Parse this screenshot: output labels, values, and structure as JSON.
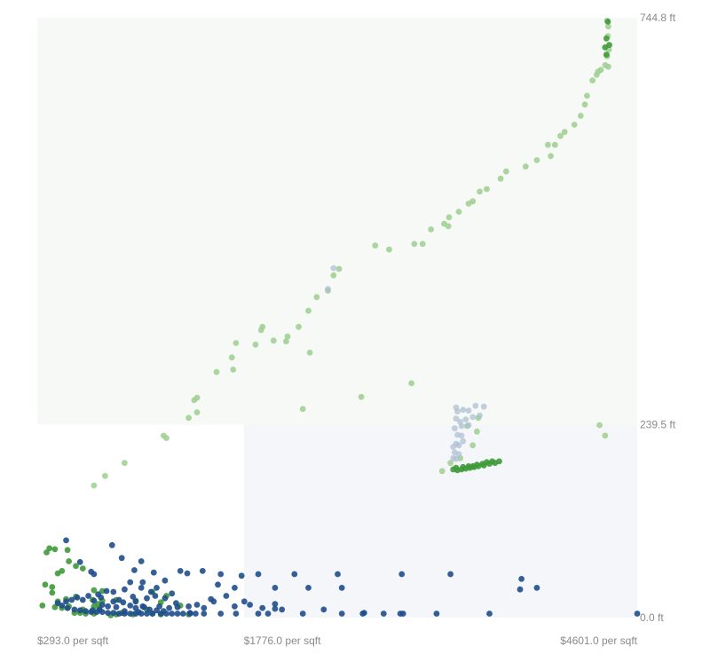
{
  "chart_data": {
    "type": "scatter",
    "title": "",
    "xlabel": "",
    "ylabel": "",
    "xlim": [
      293.0,
      4601.0
    ],
    "ylim": [
      0.0,
      744.8
    ],
    "x_ticks": [
      {
        "value": 293.0,
        "label": "$293.0 per sqft"
      },
      {
        "value": 1776.0,
        "label": "$1776.0 per sqft"
      },
      {
        "value": 4601.0,
        "label": "$4601.0 per sqft"
      }
    ],
    "y_ticks": [
      {
        "value": 744.8,
        "label": "744.8 ft"
      },
      {
        "value": 239.5,
        "label": "239.5 ft"
      },
      {
        "value": 0.0,
        "label": "0.0 ft"
      }
    ],
    "regions": [
      {
        "x": [
          293.0,
          4601.0
        ],
        "y": [
          239.5,
          744.8
        ],
        "fill": "#f7f9f6"
      },
      {
        "x": [
          1776.0,
          4601.0
        ],
        "y": [
          0.0,
          239.5
        ],
        "fill": "#f5f6f9"
      }
    ],
    "colors": {
      "blue": "#1f4e8c",
      "green": "#3f9a38",
      "light_green": "#9ccf8f",
      "light_blue": "#a9bdd3"
    },
    "series": [
      {
        "color": "#9ccf8f",
        "opacity": 0.85,
        "points": [
          [
            4385,
            741
          ],
          [
            4393,
            734
          ],
          [
            4390,
            722
          ],
          [
            4397,
            705
          ],
          [
            4385,
            697
          ],
          [
            4393,
            684
          ],
          [
            4371,
            686
          ],
          [
            4340,
            680
          ],
          [
            4320,
            678
          ],
          [
            4310,
            674
          ],
          [
            4280,
            667
          ],
          [
            4240,
            648
          ],
          [
            4225,
            637
          ],
          [
            4195,
            623
          ],
          [
            4150,
            612
          ],
          [
            4080,
            603
          ],
          [
            4050,
            598
          ],
          [
            4010,
            587
          ],
          [
            3960,
            587
          ],
          [
            3980,
            573
          ],
          [
            3880,
            568
          ],
          [
            3800,
            560
          ],
          [
            3660,
            554
          ],
          [
            3620,
            545
          ],
          [
            3520,
            532
          ],
          [
            3470,
            529
          ],
          [
            3420,
            517
          ],
          [
            3390,
            514
          ],
          [
            3320,
            504
          ],
          [
            3250,
            497
          ],
          [
            3245,
            486
          ],
          [
            3215,
            489
          ],
          [
            3120,
            482
          ],
          [
            3060,
            464
          ],
          [
            3000,
            464
          ],
          [
            2820,
            457
          ],
          [
            2720,
            462
          ],
          [
            2460,
            433
          ],
          [
            2420,
            425
          ],
          [
            2380,
            406
          ],
          [
            2300,
            398
          ],
          [
            2240,
            381
          ],
          [
            2170,
            361
          ],
          [
            2090,
            349
          ],
          [
            2080,
            343
          ],
          [
            1990,
            344
          ],
          [
            1910,
            361
          ],
          [
            1900,
            357
          ],
          [
            1860,
            339
          ],
          [
            1720,
            341
          ],
          [
            1690,
            323
          ],
          [
            1580,
            305
          ],
          [
            1440,
            273
          ],
          [
            1420,
            270
          ],
          [
            1440,
            255
          ],
          [
            1380,
            248
          ],
          [
            1220,
            223
          ],
          [
            1200,
            226
          ],
          [
            920,
            192
          ],
          [
            780,
            176
          ],
          [
            700,
            164
          ],
          [
            2200,
            259
          ],
          [
            1700,
            308
          ],
          [
            3380,
            238
          ],
          [
            3450,
            231
          ],
          [
            3420,
            214
          ],
          [
            3330,
            198
          ],
          [
            3260,
            192
          ],
          [
            3200,
            182
          ],
          [
            2250,
            329
          ],
          [
            2620,
            274
          ],
          [
            2980,
            291
          ],
          [
            3460,
            248
          ],
          [
            4330,
            239
          ],
          [
            4370,
            226
          ]
        ]
      },
      {
        "color": "#a9bdd3",
        "opacity": 0.7,
        "points": [
          [
            3300,
            261
          ],
          [
            3310,
            256
          ],
          [
            3350,
            258
          ],
          [
            3390,
            257
          ],
          [
            3440,
            263
          ],
          [
            3500,
            262
          ],
          [
            3300,
            247
          ],
          [
            3330,
            243
          ],
          [
            3370,
            246
          ],
          [
            3420,
            249
          ],
          [
            3470,
            251
          ],
          [
            3290,
            235
          ],
          [
            3340,
            238
          ],
          [
            3390,
            239
          ],
          [
            3310,
            227
          ],
          [
            3340,
            226
          ],
          [
            3300,
            216
          ],
          [
            3320,
            214
          ],
          [
            3350,
            219
          ],
          [
            3280,
            212
          ],
          [
            3290,
            205
          ],
          [
            3320,
            203
          ],
          [
            3280,
            198
          ],
          [
            3300,
            197
          ],
          [
            2380,
            408
          ],
          [
            2420,
            434
          ]
        ]
      },
      {
        "color": "#3f9a38",
        "opacity": 0.9,
        "points": [
          [
            3280,
            184
          ],
          [
            3310,
            183
          ],
          [
            3340,
            184
          ],
          [
            3370,
            185
          ],
          [
            3400,
            186
          ],
          [
            3430,
            187
          ],
          [
            3460,
            188
          ],
          [
            3500,
            189
          ],
          [
            3540,
            191
          ],
          [
            3580,
            192
          ],
          [
            3610,
            194
          ],
          [
            3300,
            186
          ],
          [
            3350,
            187
          ],
          [
            3390,
            188
          ],
          [
            3420,
            188
          ],
          [
            3450,
            190
          ],
          [
            3490,
            191
          ],
          [
            3520,
            193
          ],
          [
            3560,
            194
          ],
          [
            4390,
            740
          ],
          [
            4380,
            719
          ],
          [
            4370,
            708
          ],
          [
            4400,
            711
          ],
          [
            4380,
            699
          ],
          [
            380,
            86
          ],
          [
            420,
            85
          ],
          [
            510,
            84
          ],
          [
            360,
            81
          ],
          [
            520,
            70
          ],
          [
            570,
            64
          ],
          [
            620,
            61
          ],
          [
            470,
            58
          ],
          [
            440,
            55
          ],
          [
            350,
            41
          ],
          [
            400,
            38
          ],
          [
            400,
            31
          ],
          [
            570,
            26
          ],
          [
            500,
            23
          ],
          [
            440,
            20
          ],
          [
            520,
            14
          ],
          [
            620,
            10
          ],
          [
            700,
            14
          ],
          [
            740,
            12
          ],
          [
            330,
            15
          ],
          [
            560,
            6
          ],
          [
            640,
            5
          ],
          [
            860,
            4
          ],
          [
            900,
            6
          ],
          [
            1080,
            10
          ],
          [
            1180,
            19
          ],
          [
            1120,
            32
          ],
          [
            1220,
            27
          ],
          [
            1320,
            15
          ],
          [
            1000,
            21
          ],
          [
            860,
            22
          ],
          [
            760,
            21
          ],
          [
            420,
            13
          ],
          [
            470,
            12
          ],
          [
            510,
            12
          ],
          [
            700,
            34
          ],
          [
            760,
            33
          ],
          [
            690,
            22
          ],
          [
            730,
            17
          ],
          [
            600,
            6
          ],
          [
            700,
            5
          ],
          [
            820,
            3
          ],
          [
            980,
            4
          ],
          [
            1180,
            4
          ],
          [
            1120,
            5
          ],
          [
            1380,
            4
          ]
        ]
      },
      {
        "color": "#1f4e8c",
        "opacity": 0.9,
        "points": [
          [
            500,
            96
          ],
          [
            830,
            90
          ],
          [
            900,
            74
          ],
          [
            1040,
            70
          ],
          [
            600,
            69
          ],
          [
            680,
            57
          ],
          [
            700,
            54
          ],
          [
            990,
            59
          ],
          [
            1320,
            58
          ],
          [
            1480,
            58
          ],
          [
            1610,
            54
          ],
          [
            1880,
            54
          ],
          [
            2140,
            54
          ],
          [
            2450,
            54
          ],
          [
            2910,
            54
          ],
          [
            3260,
            54
          ],
          [
            3770,
            48
          ],
          [
            1370,
            55
          ],
          [
            1760,
            52
          ],
          [
            1590,
            41
          ],
          [
            1710,
            37
          ],
          [
            2000,
            37
          ],
          [
            2240,
            37
          ],
          [
            2480,
            37
          ],
          [
            3760,
            35
          ],
          [
            3880,
            37
          ],
          [
            1150,
            37
          ],
          [
            840,
            32
          ],
          [
            730,
            29
          ],
          [
            660,
            27
          ],
          [
            580,
            25
          ],
          [
            540,
            22
          ],
          [
            500,
            20
          ],
          [
            440,
            18
          ],
          [
            470,
            15
          ],
          [
            510,
            12
          ],
          [
            560,
            10
          ],
          [
            600,
            9
          ],
          [
            640,
            8
          ],
          [
            680,
            7
          ],
          [
            720,
            7
          ],
          [
            760,
            7
          ],
          [
            800,
            6
          ],
          [
            840,
            6
          ],
          [
            880,
            5
          ],
          [
            920,
            5
          ],
          [
            960,
            5
          ],
          [
            1000,
            5
          ],
          [
            1040,
            5
          ],
          [
            1080,
            5
          ],
          [
            1120,
            5
          ],
          [
            1180,
            5
          ],
          [
            1220,
            5
          ],
          [
            1260,
            5
          ],
          [
            1300,
            5
          ],
          [
            1340,
            5
          ],
          [
            1390,
            5
          ],
          [
            1430,
            5
          ],
          [
            1490,
            5
          ],
          [
            1610,
            5
          ],
          [
            1720,
            5
          ],
          [
            1880,
            5
          ],
          [
            1950,
            5
          ],
          [
            2200,
            5
          ],
          [
            2480,
            5
          ],
          [
            2630,
            5
          ],
          [
            2780,
            5
          ],
          [
            2900,
            5
          ],
          [
            2920,
            5
          ],
          [
            3160,
            5
          ],
          [
            3540,
            5
          ],
          [
            4601,
            5
          ],
          [
            620,
            22
          ],
          [
            700,
            21
          ],
          [
            750,
            25
          ],
          [
            690,
            9
          ],
          [
            740,
            10
          ],
          [
            800,
            14
          ],
          [
            840,
            20
          ],
          [
            910,
            19
          ],
          [
            880,
            22
          ],
          [
            960,
            15
          ],
          [
            1000,
            20
          ],
          [
            1080,
            24
          ],
          [
            1110,
            32
          ],
          [
            1140,
            27
          ],
          [
            1210,
            24
          ],
          [
            1260,
            30
          ],
          [
            1290,
            18
          ],
          [
            1170,
            14
          ],
          [
            1060,
            13
          ],
          [
            1020,
            7
          ],
          [
            1100,
            10
          ],
          [
            1150,
            9
          ],
          [
            1200,
            8
          ],
          [
            1240,
            12
          ],
          [
            1300,
            13
          ],
          [
            2000,
            11
          ],
          [
            2000,
            17
          ],
          [
            2050,
            10
          ],
          [
            1380,
            14
          ],
          [
            1440,
            16
          ],
          [
            1560,
            20
          ],
          [
            1650,
            27
          ],
          [
            1710,
            14
          ],
          [
            1780,
            20
          ],
          [
            1820,
            16
          ],
          [
            1910,
            12
          ],
          [
            920,
            8
          ],
          [
            1050,
            14
          ],
          [
            860,
            13
          ],
          [
            760,
            16
          ],
          [
            1490,
            12
          ],
          [
            1390,
            6
          ],
          [
            1540,
            23
          ],
          [
            790,
            33
          ],
          [
            920,
            35
          ],
          [
            960,
            44
          ],
          [
            1050,
            44
          ],
          [
            1130,
            56
          ],
          [
            1000,
            12
          ],
          [
            980,
            26
          ],
          [
            1040,
            37
          ],
          [
            1210,
            46
          ],
          [
            2350,
            10
          ],
          [
            2640,
            6
          ]
        ]
      }
    ]
  }
}
